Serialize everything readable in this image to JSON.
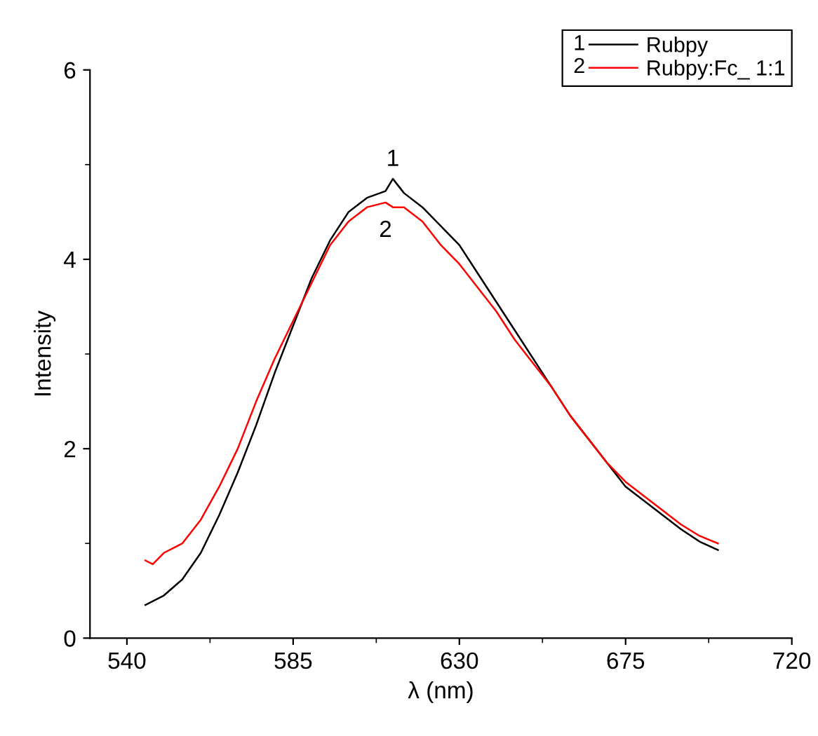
{
  "chart_data": {
    "type": "line",
    "xlabel": "λ (nm)",
    "ylabel": "Intensity",
    "xlim": [
      530,
      720
    ],
    "xticks": [
      540,
      585,
      630,
      675,
      720
    ],
    "ylim": [
      0,
      6
    ],
    "yticks": [
      0,
      2,
      4,
      6
    ],
    "grid": false,
    "legend": "top right",
    "marker": "none",
    "line_style": "solid",
    "annotations": [
      "1",
      "2"
    ],
    "series": [
      {
        "name": "Rubpy",
        "color": "#000000",
        "x": [
          545,
          550,
          555,
          560,
          565,
          570,
          575,
          580,
          585,
          590,
          595,
          600,
          605,
          610,
          612,
          615,
          620,
          625,
          630,
          635,
          640,
          645,
          650,
          655,
          660,
          665,
          670,
          675,
          680,
          685,
          690,
          695,
          700
        ],
        "values": [
          0.35,
          0.45,
          0.62,
          0.9,
          1.3,
          1.75,
          2.25,
          2.8,
          3.3,
          3.8,
          4.2,
          4.5,
          4.65,
          4.72,
          4.85,
          4.7,
          4.55,
          4.35,
          4.15,
          3.85,
          3.55,
          3.25,
          2.95,
          2.65,
          2.35,
          2.1,
          1.85,
          1.6,
          1.45,
          1.3,
          1.15,
          1.02,
          0.93
        ]
      },
      {
        "name": "Rubpy:Fc_ 1:1",
        "color": "#ff0000",
        "x": [
          545,
          547,
          550,
          555,
          560,
          565,
          570,
          575,
          580,
          585,
          590,
          595,
          600,
          605,
          610,
          612,
          615,
          620,
          625,
          630,
          635,
          640,
          645,
          650,
          655,
          660,
          665,
          670,
          675,
          680,
          685,
          690,
          695,
          700
        ],
        "values": [
          0.82,
          0.78,
          0.9,
          1.0,
          1.25,
          1.6,
          2.0,
          2.5,
          2.95,
          3.35,
          3.75,
          4.15,
          4.4,
          4.55,
          4.6,
          4.55,
          4.55,
          4.4,
          4.15,
          3.95,
          3.7,
          3.45,
          3.15,
          2.9,
          2.65,
          2.35,
          2.1,
          1.85,
          1.65,
          1.5,
          1.35,
          1.2,
          1.08,
          1.0
        ]
      }
    ]
  }
}
